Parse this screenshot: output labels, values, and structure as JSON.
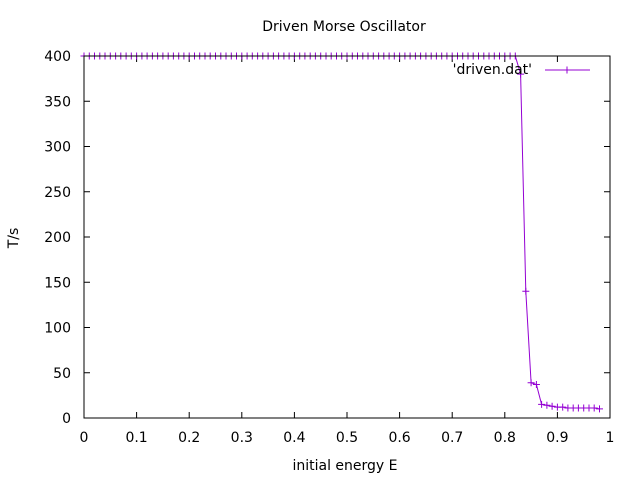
{
  "chart_data": {
    "type": "line",
    "title": "Driven Morse Oscillator",
    "xlabel": "initial energy E",
    "ylabel": "T/s",
    "xlim": [
      0,
      1
    ],
    "ylim": [
      0,
      400
    ],
    "x_ticks": [
      "0",
      "0.1",
      "0.2",
      "0.3",
      "0.4",
      "0.5",
      "0.6",
      "0.7",
      "0.8",
      "0.9",
      "1"
    ],
    "y_ticks": [
      "0",
      "50",
      "100",
      "150",
      "200",
      "250",
      "300",
      "350",
      "400"
    ],
    "grid": false,
    "legend_position": "top-right",
    "series": [
      {
        "name": "'driven.dat'",
        "color": "#9400d3",
        "marker": "plus",
        "x": [
          0.0,
          0.01,
          0.02,
          0.03,
          0.04,
          0.05,
          0.06,
          0.07,
          0.08,
          0.09,
          0.1,
          0.11,
          0.12,
          0.13,
          0.14,
          0.15,
          0.16,
          0.17,
          0.18,
          0.19,
          0.2,
          0.21,
          0.22,
          0.23,
          0.24,
          0.25,
          0.26,
          0.27,
          0.28,
          0.29,
          0.3,
          0.31,
          0.32,
          0.33,
          0.34,
          0.35,
          0.36,
          0.37,
          0.38,
          0.39,
          0.4,
          0.41,
          0.42,
          0.43,
          0.44,
          0.45,
          0.46,
          0.47,
          0.48,
          0.49,
          0.5,
          0.51,
          0.52,
          0.53,
          0.54,
          0.55,
          0.56,
          0.57,
          0.58,
          0.59,
          0.6,
          0.61,
          0.62,
          0.63,
          0.64,
          0.65,
          0.66,
          0.67,
          0.68,
          0.69,
          0.7,
          0.71,
          0.72,
          0.73,
          0.74,
          0.75,
          0.76,
          0.77,
          0.78,
          0.79,
          0.8,
          0.81,
          0.82,
          0.83,
          0.84,
          0.85,
          0.86,
          0.87,
          0.88,
          0.89,
          0.9,
          0.91,
          0.92,
          0.93,
          0.94,
          0.95,
          0.96,
          0.97,
          0.98
        ],
        "y": [
          400,
          400,
          400,
          400,
          400,
          400,
          400,
          400,
          400,
          400,
          400,
          400,
          400,
          400,
          400,
          400,
          400,
          400,
          400,
          400,
          400,
          400,
          400,
          400,
          400,
          400,
          400,
          400,
          400,
          400,
          400,
          400,
          400,
          400,
          400,
          400,
          400,
          400,
          400,
          400,
          400,
          400,
          400,
          400,
          400,
          400,
          400,
          400,
          400,
          400,
          400,
          400,
          400,
          400,
          400,
          400,
          400,
          400,
          400,
          400,
          400,
          400,
          400,
          400,
          400,
          400,
          400,
          400,
          400,
          400,
          400,
          400,
          400,
          400,
          400,
          400,
          400,
          400,
          400,
          400,
          400,
          400,
          400,
          380,
          140,
          39,
          37,
          15,
          14,
          13,
          12,
          12,
          11,
          11,
          11,
          11,
          11,
          11,
          10
        ]
      }
    ]
  }
}
